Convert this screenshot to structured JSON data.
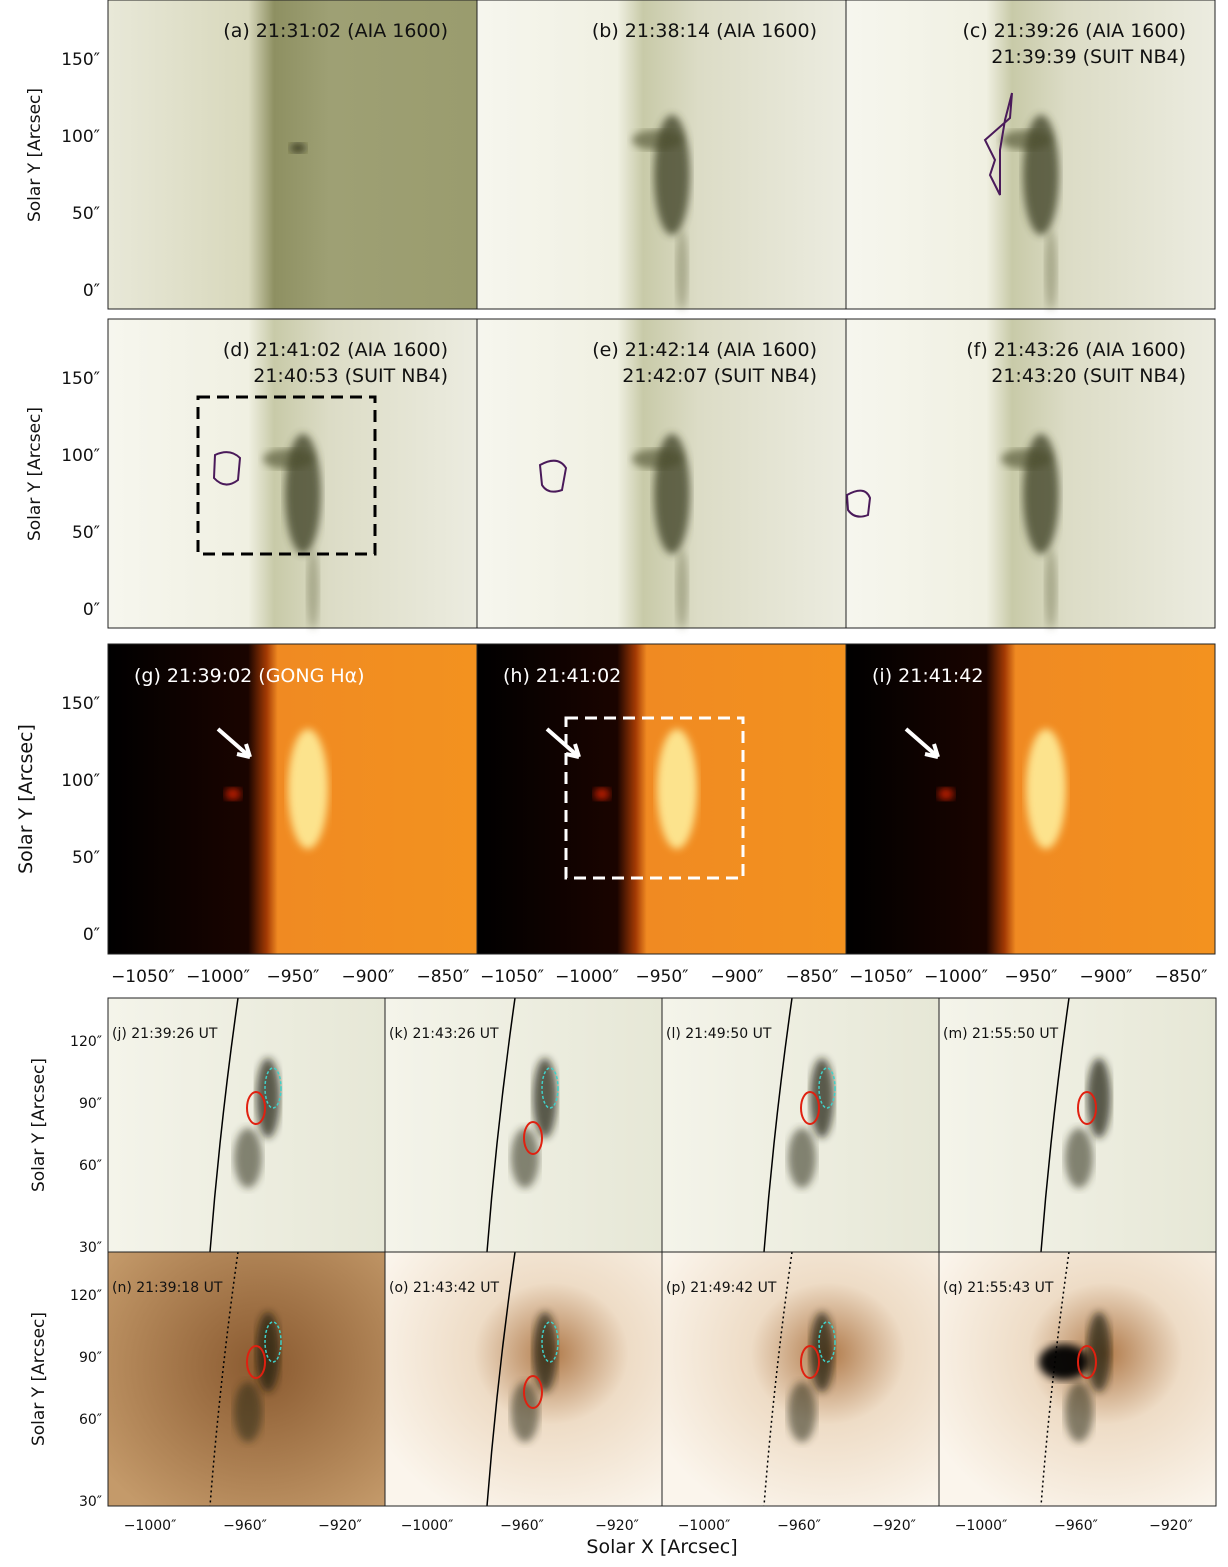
{
  "rows_aia": {
    "y_label": "Solar Y [Arcsec]",
    "y_ticks": [
      "150″",
      "100″",
      "50″",
      "0″"
    ],
    "panels": [
      {
        "lines": [
          "(a) 21:31:02 (AIA 1600)"
        ]
      },
      {
        "lines": [
          "(b) 21:38:14 (AIA 1600)"
        ]
      },
      {
        "lines": [
          "(c) 21:39:26 (AIA 1600)",
          "21:39:39 (SUIT NB4)"
        ]
      },
      {
        "lines": [
          "(d) 21:41:02 (AIA 1600)",
          "21:40:53 (SUIT NB4)"
        ]
      },
      {
        "lines": [
          "(e) 21:42:14 (AIA 1600)",
          "21:42:07 (SUIT NB4)"
        ]
      },
      {
        "lines": [
          "(f) 21:43:26 (AIA 1600)",
          "21:43:20 (SUIT NB4)"
        ]
      }
    ]
  },
  "row_gong": {
    "y_label": "Solar Y [Arcsec]",
    "y_ticks": [
      "150″",
      "100″",
      "50″",
      "0″"
    ],
    "x_ticks": [
      "−1050″",
      "−1000″",
      "−950″",
      "−900″",
      "−850″"
    ],
    "panels": [
      {
        "lines": [
          "(g) 21:39:02 (GONG Hα)"
        ]
      },
      {
        "lines": [
          "(h) 21:41:02"
        ]
      },
      {
        "lines": [
          "(i) 21:41:42"
        ]
      }
    ]
  },
  "rows_zoom": {
    "y_label": "Solar Y [Arcsec]",
    "y_ticks": [
      "120″",
      "90″",
      "60″",
      "30″"
    ],
    "x_ticks": [
      "−1000″",
      "−960″",
      "−920″"
    ],
    "x_label": "Solar X [Arcsec]",
    "panels": [
      {
        "lines": [
          "(j) 21:39:26 UT"
        ]
      },
      {
        "lines": [
          "(k) 21:43:26 UT"
        ]
      },
      {
        "lines": [
          "(l) 21:49:50 UT"
        ]
      },
      {
        "lines": [
          "(m) 21:55:50 UT"
        ]
      },
      {
        "lines": [
          "(n) 21:39:18 UT"
        ]
      },
      {
        "lines": [
          "(o) 21:43:42 UT"
        ]
      },
      {
        "lines": [
          "(p) 21:49:42 UT"
        ]
      },
      {
        "lines": [
          "(q) 21:55:43 UT"
        ]
      }
    ]
  }
}
